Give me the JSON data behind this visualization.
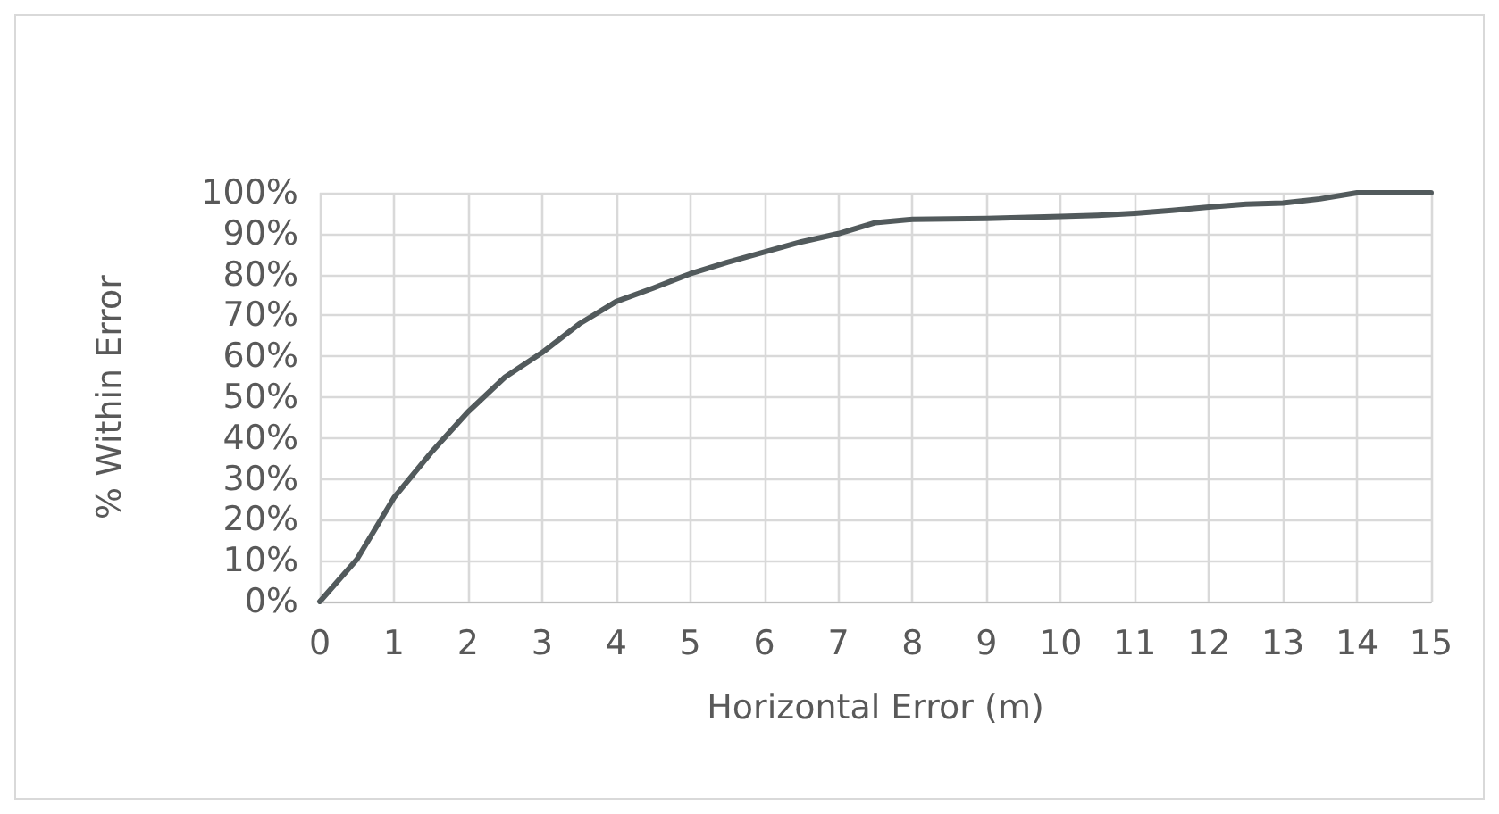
{
  "chart_data": {
    "type": "line",
    "xlabel": "Horizontal Error (m)",
    "ylabel": "% Within Error",
    "x": [
      0,
      0.5,
      1,
      1.5,
      2,
      2.5,
      3,
      3.5,
      4,
      4.5,
      5,
      5.5,
      6,
      6.5,
      7,
      7.5,
      8,
      9,
      10,
      10.5,
      11,
      11.5,
      12,
      12.5,
      13,
      13.5,
      14,
      15
    ],
    "series": [
      {
        "color": "#525a5c",
        "values": [
          0,
          10.3,
          25.4,
          36.4,
          46.4,
          54.9,
          60.9,
          67.9,
          73.4,
          76.7,
          80.2,
          83,
          85.5,
          88,
          90,
          92.7,
          93.5,
          93.7,
          94.2,
          94.5,
          95,
          95.7,
          96.5,
          97.2,
          97.5,
          98.5,
          100,
          100
        ]
      }
    ],
    "xlim": [
      0,
      15
    ],
    "xticks": [
      0,
      1,
      2,
      3,
      4,
      5,
      6,
      7,
      8,
      9,
      10,
      11,
      12,
      13,
      14,
      15
    ],
    "ylim": [
      0,
      100
    ],
    "yticks": [
      {
        "value": 0,
        "label": "0%"
      },
      {
        "value": 10,
        "label": "10%"
      },
      {
        "value": 20,
        "label": "20%"
      },
      {
        "value": 30,
        "label": "30%"
      },
      {
        "value": 40,
        "label": "40%"
      },
      {
        "value": 50,
        "label": "50%"
      },
      {
        "value": 60,
        "label": "60%"
      },
      {
        "value": 70,
        "label": "70%"
      },
      {
        "value": 80,
        "label": "80%"
      },
      {
        "value": 90,
        "label": "90%"
      },
      {
        "value": 100,
        "label": "100%"
      }
    ],
    "grid": true,
    "marker": "none",
    "line_style": "solid"
  }
}
